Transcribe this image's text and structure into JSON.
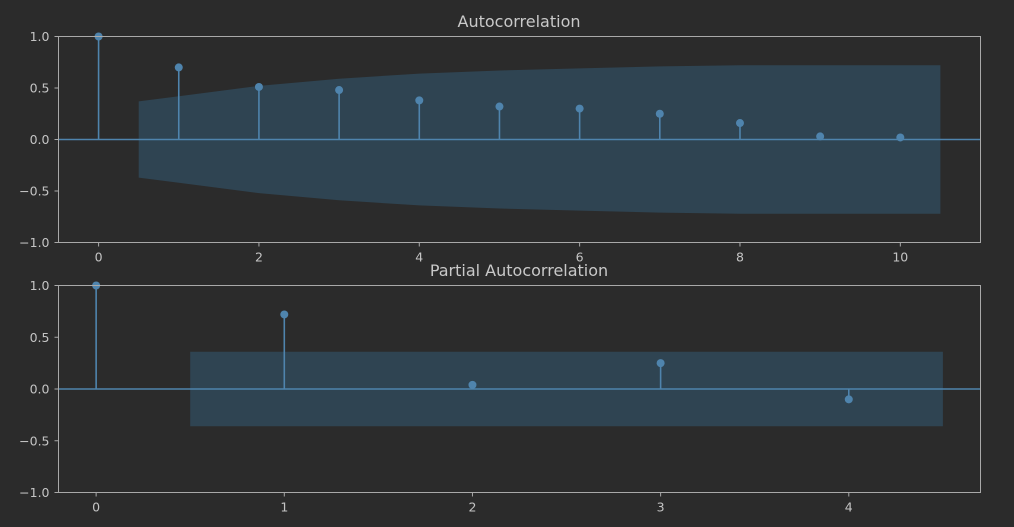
{
  "chart_data": [
    {
      "type": "stem",
      "title": "Autocorrelation",
      "xlabel": "",
      "ylabel": "",
      "xlim": [
        -0.5,
        11.0
      ],
      "ylim": [
        -1.0,
        1.0
      ],
      "xticks": [
        0,
        2,
        4,
        6,
        8,
        10
      ],
      "yticks": [
        -1.0,
        -0.5,
        0.0,
        0.5,
        1.0
      ],
      "ytick_labels": [
        "−1.0",
        "−0.5",
        "0.0",
        "0.5",
        "1.0"
      ],
      "lags": [
        0,
        1,
        2,
        3,
        4,
        5,
        6,
        7,
        8,
        9,
        10
      ],
      "values": [
        1.0,
        0.7,
        0.51,
        0.48,
        0.38,
        0.32,
        0.3,
        0.25,
        0.16,
        0.03,
        0.02
      ],
      "confidence_interval": {
        "lags": [
          0.5,
          1,
          2,
          3,
          4,
          5,
          6,
          7,
          8,
          9,
          10,
          10.5
        ],
        "upper": [
          0.37,
          0.42,
          0.52,
          0.59,
          0.64,
          0.67,
          0.69,
          0.71,
          0.72,
          0.72,
          0.72,
          0.72
        ]
      },
      "colors": {
        "stem": "#4f84ad",
        "band": "#2f4452",
        "zero_line": "#4f84ad"
      }
    },
    {
      "type": "stem",
      "title": "Partial Autocorrelation",
      "xlabel": "",
      "ylabel": "",
      "xlim": [
        -0.2,
        4.7
      ],
      "ylim": [
        -1.0,
        1.0
      ],
      "xticks": [
        0,
        1,
        2,
        3,
        4
      ],
      "yticks": [
        -1.0,
        -0.5,
        0.0,
        0.5,
        1.0
      ],
      "ytick_labels": [
        "−1.0",
        "−0.5",
        "0.0",
        "0.5",
        "1.0"
      ],
      "lags": [
        0,
        1,
        2,
        3,
        4
      ],
      "values": [
        1.0,
        0.72,
        0.04,
        0.25,
        -0.1
      ],
      "confidence_interval": {
        "lags": [
          0.5,
          4.5
        ],
        "upper": [
          0.36,
          0.36
        ]
      },
      "colors": {
        "stem": "#4f84ad",
        "band": "#2f4452",
        "zero_line": "#4f84ad"
      }
    }
  ]
}
